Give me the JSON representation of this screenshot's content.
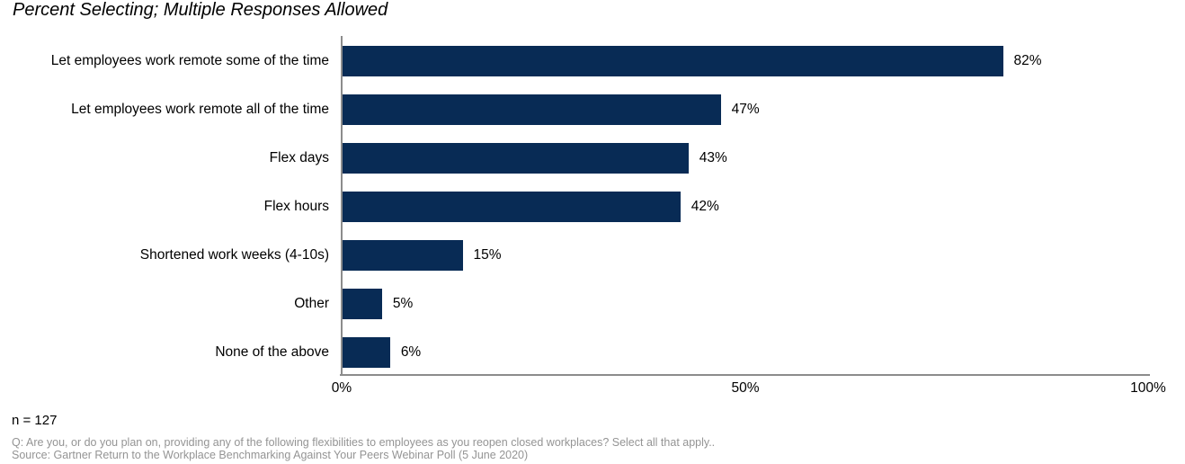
{
  "title": "Percent Selecting; Multiple Responses Allowed",
  "chart_data": {
    "type": "bar",
    "orientation": "horizontal",
    "title": "Percent Selecting; Multiple Responses Allowed",
    "categories": [
      "Let employees work remote some of the time",
      "Let employees work remote all of the time",
      "Flex days",
      "Flex hours",
      "Shortened work weeks (4-10s)",
      "Other",
      "None of the above"
    ],
    "values": [
      82,
      47,
      43,
      42,
      15,
      5,
      6
    ],
    "value_labels": [
      "82%",
      "47%",
      "43%",
      "42%",
      "15%",
      "5%",
      "6%"
    ],
    "xlabel": "",
    "ylabel": "",
    "xlim": [
      0,
      100
    ],
    "x_ticks": [
      "0%",
      "50%",
      "100%"
    ],
    "grid": false,
    "legend": "none",
    "bar_color": "#082b55",
    "axis_color": "#8c8c8c"
  },
  "footer": {
    "sample_size": "n = 127",
    "question": "Q: Are you, or do you plan on, providing any of the following flexibilities to employees as you reopen closed workplaces? Select all that apply..",
    "source": "Source: Gartner Return to the Workplace Benchmarking Against Your Peers Webinar Poll (5 June 2020)"
  }
}
